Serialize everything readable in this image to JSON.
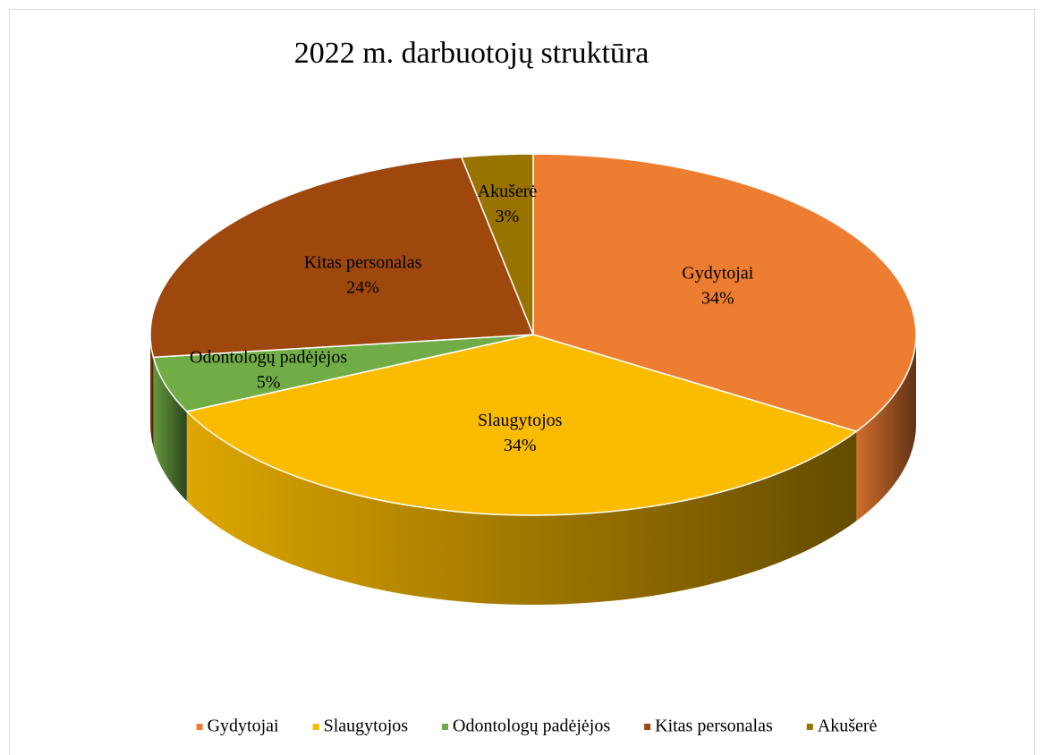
{
  "chart_data": {
    "type": "pie3d",
    "title": "2022 m. darbuotojų struktūra",
    "categories": [
      "Gydytojai",
      "Slaugytojos",
      "Odontologų padėjėjos",
      "Kitas personalas",
      "Akušerė"
    ],
    "values": [
      34,
      34,
      5,
      24,
      3
    ],
    "value_labels": [
      "34%",
      "34%",
      "5%",
      "24%",
      "3%"
    ],
    "colors": [
      "#ed7d31",
      "#fbbc00",
      "#70ad47",
      "#9e480e",
      "#997300"
    ],
    "legend": "bottom"
  }
}
